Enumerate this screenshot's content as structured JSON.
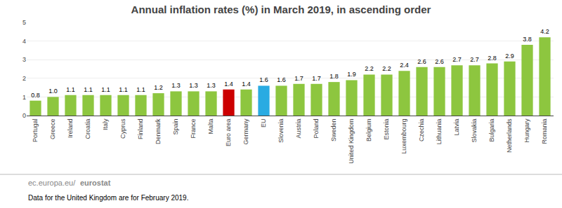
{
  "chart_data": {
    "type": "bar",
    "title": "Annual inflation rates (%) in March 2019, in ascending order",
    "categories": [
      "Portugal",
      "Greece",
      "Ireland",
      "Croatia",
      "Italy",
      "Cyprus",
      "Finland",
      "Denmark",
      "Spain",
      "France",
      "Malta",
      "Euro area",
      "Germany",
      "EU",
      "Slovenia",
      "Austria",
      "Poland",
      "Sweden",
      "United Kingdom",
      "Belgium",
      "Estonia",
      "Luxembourg",
      "Czechia",
      "Lithuania",
      "Latvia",
      "Slovakia",
      "Bulgaria",
      "Netherlands",
      "Hungary",
      "Romania"
    ],
    "values": [
      0.8,
      1.0,
      1.1,
      1.1,
      1.1,
      1.1,
      1.1,
      1.2,
      1.3,
      1.3,
      1.3,
      1.4,
      1.4,
      1.6,
      1.6,
      1.7,
      1.7,
      1.8,
      1.9,
      2.2,
      2.2,
      2.4,
      2.6,
      2.6,
      2.7,
      2.7,
      2.8,
      2.9,
      3.8,
      4.2
    ],
    "value_labels": [
      "0.8",
      "1.0",
      "1.1",
      "1.1",
      "1.1",
      "1.1",
      "1.1",
      "1.2",
      "1.3",
      "1.3",
      "1.3",
      "1.4",
      "1.4",
      "1.6",
      "1.6",
      "1.7",
      "1.7",
      "1.8",
      "1.9",
      "2.2",
      "2.2",
      "2.4",
      "2.6",
      "2.6",
      "2.7",
      "2.7",
      "2.8",
      "2.9",
      "3.8",
      "4.2"
    ],
    "colors": [
      "#8dc63f",
      "#8dc63f",
      "#8dc63f",
      "#8dc63f",
      "#8dc63f",
      "#8dc63f",
      "#8dc63f",
      "#8dc63f",
      "#8dc63f",
      "#8dc63f",
      "#8dc63f",
      "#cc0000",
      "#8dc63f",
      "#29abe2",
      "#8dc63f",
      "#8dc63f",
      "#8dc63f",
      "#8dc63f",
      "#8dc63f",
      "#8dc63f",
      "#8dc63f",
      "#8dc63f",
      "#8dc63f",
      "#8dc63f",
      "#8dc63f",
      "#8dc63f",
      "#8dc63f",
      "#8dc63f",
      "#8dc63f",
      "#8dc63f"
    ],
    "ylim": [
      0,
      5
    ],
    "yticks": [
      0,
      1,
      2,
      3,
      4,
      5
    ],
    "grid": true,
    "data_labels": true,
    "annotations": [
      "ec.europa.eu/",
      "eurostat",
      "Data for the United Kingdom are for February 2019."
    ]
  }
}
